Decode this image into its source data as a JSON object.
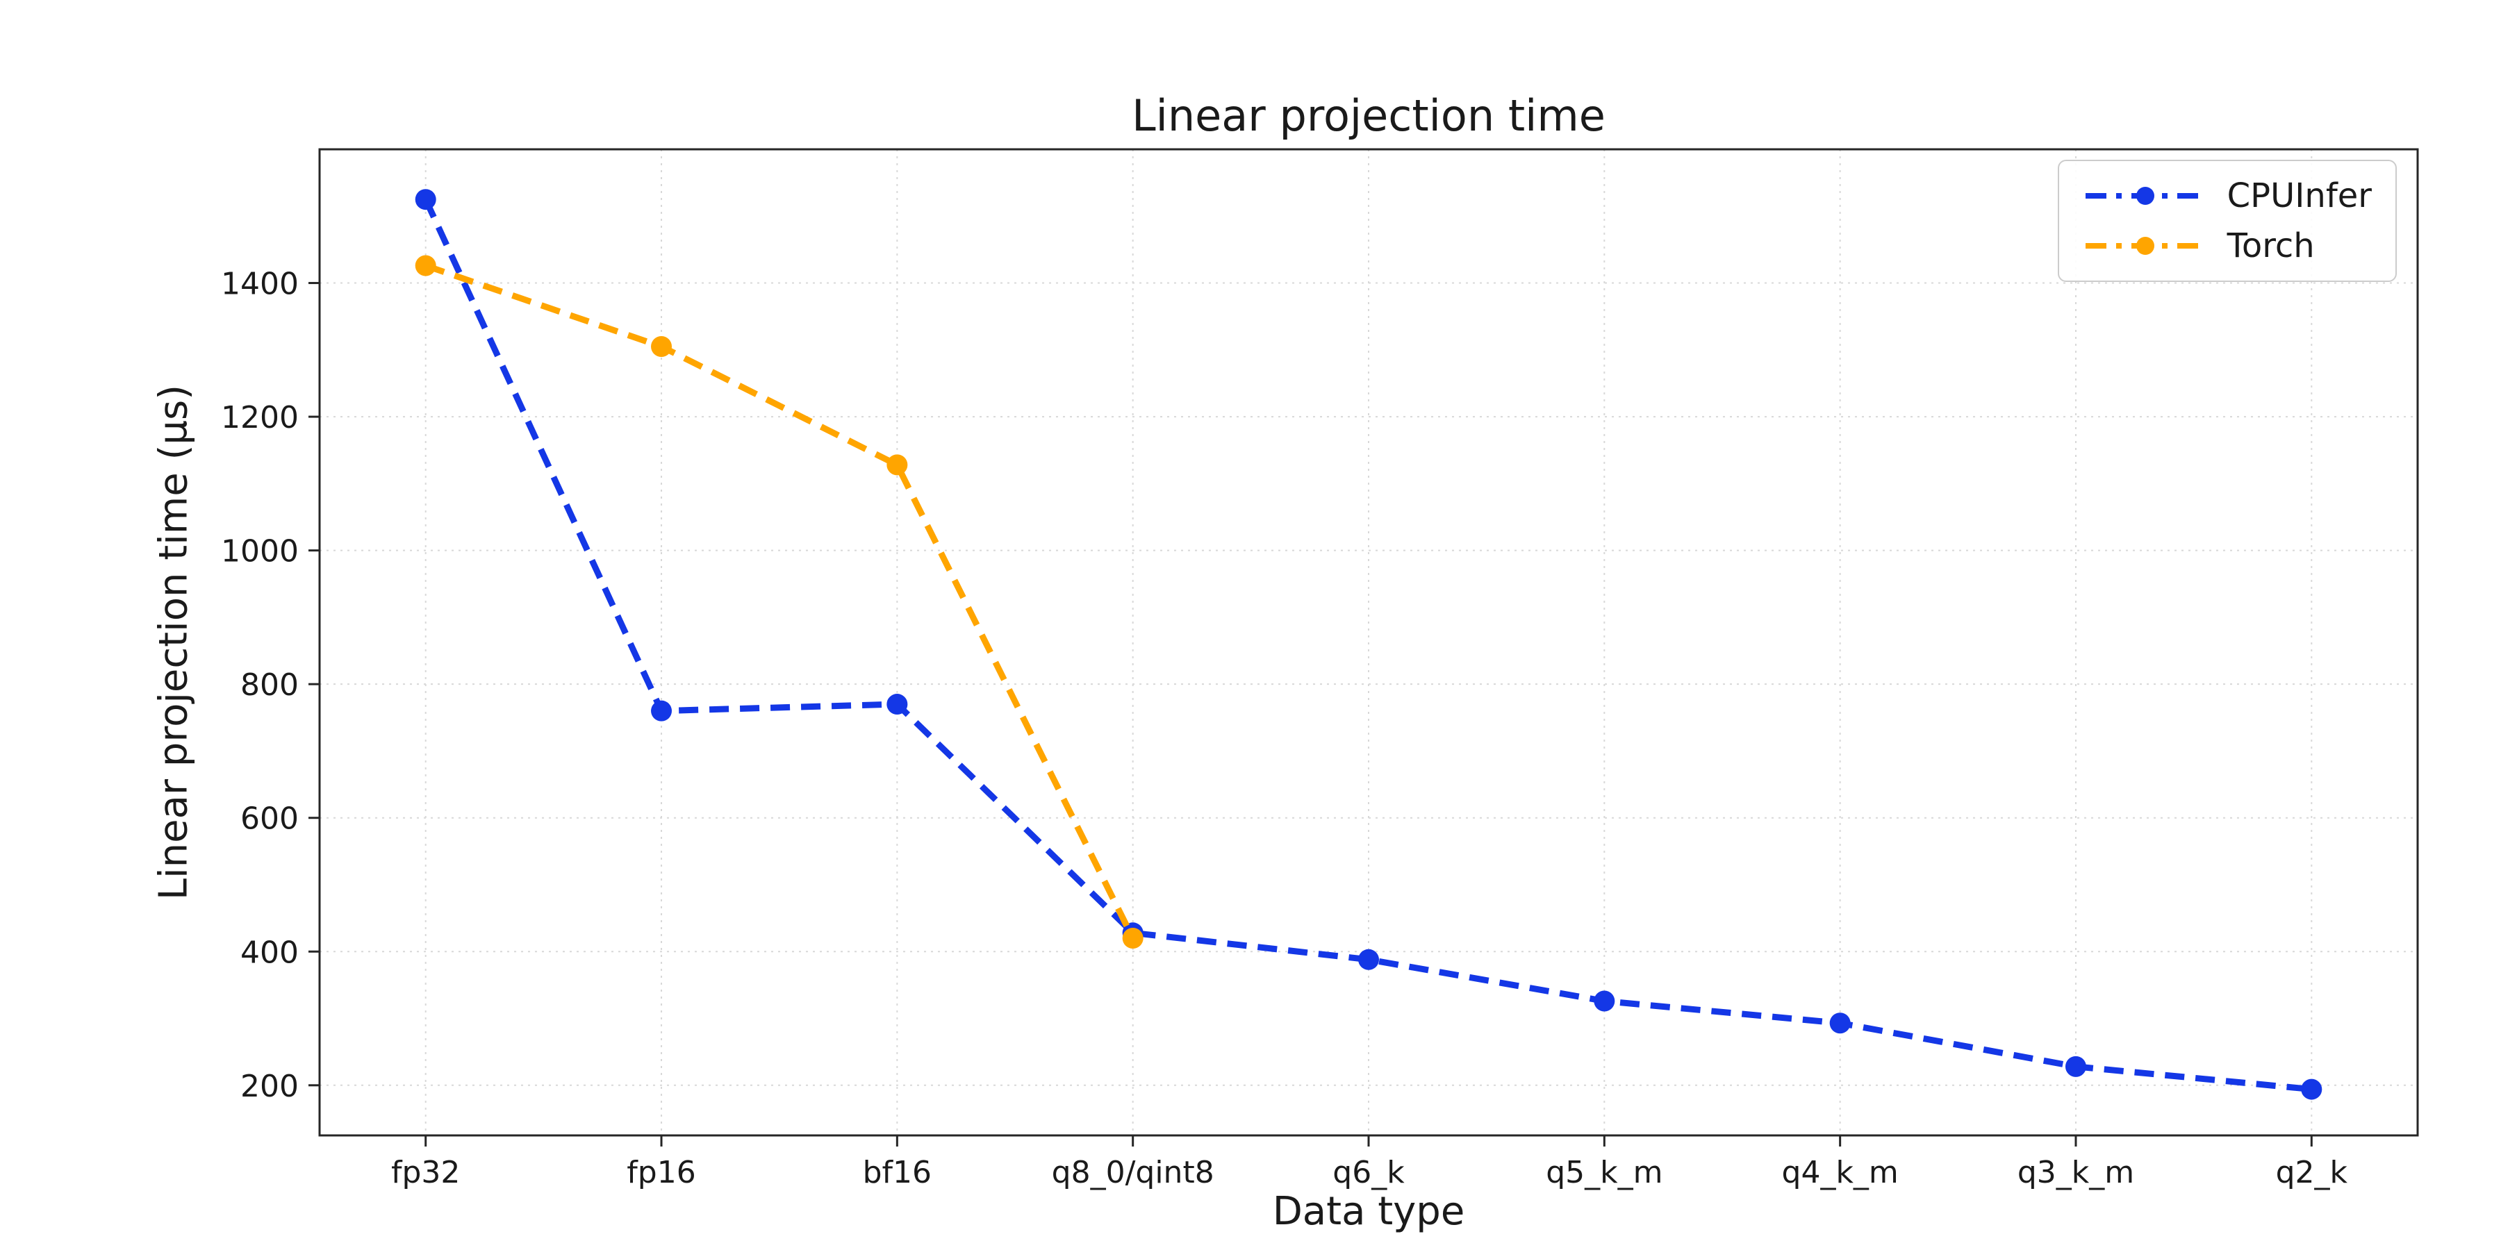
{
  "chart_data": {
    "type": "line",
    "title": "Linear projection time",
    "xlabel": "Data type",
    "ylabel": "Linear projection time (µs)",
    "categories": [
      "fp32",
      "fp16",
      "bf16",
      "q8_0/qint8",
      "q6_k",
      "q5_k_m",
      "q4_k_m",
      "q3_k_m",
      "q2_k"
    ],
    "series": [
      {
        "name": "CPUInfer",
        "color": "#1437e6",
        "values": [
          1525,
          760,
          770,
          428,
          388,
          326,
          293,
          228,
          194
        ]
      },
      {
        "name": "Torch",
        "color": "#ffa500",
        "values": [
          1426,
          1305,
          1128,
          420,
          null,
          null,
          null,
          null,
          null
        ]
      }
    ],
    "ylim": [
      125,
      1600
    ],
    "yticks": [
      200,
      400,
      600,
      800,
      1000,
      1200,
      1400
    ],
    "grid": true,
    "grid_color": "#d8d8d8",
    "spine_color": "#262626",
    "legend_position": "upper right",
    "line_style": "dashed",
    "marker": "circle"
  }
}
